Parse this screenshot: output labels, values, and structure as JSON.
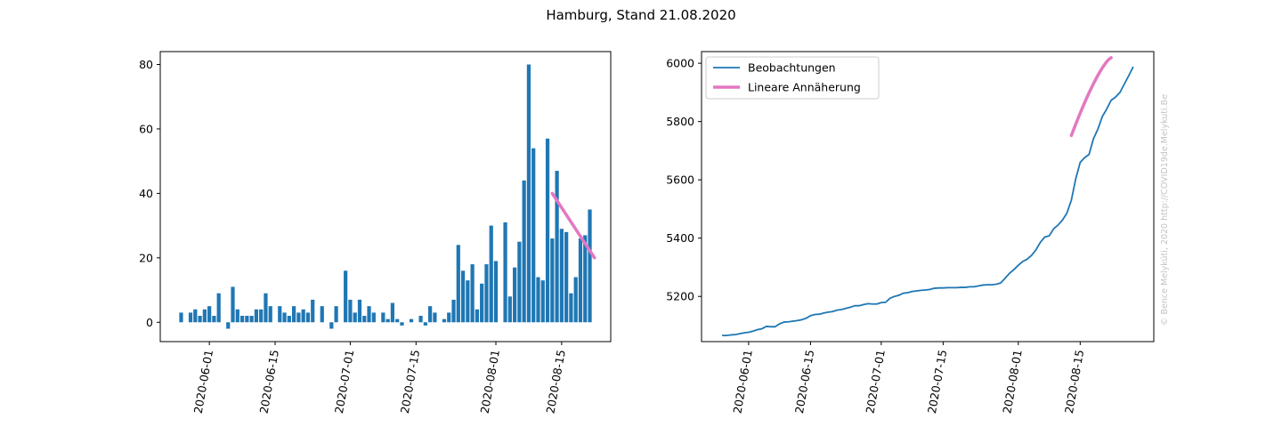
{
  "title": "Hamburg, Stand 21.08.2020",
  "watermark": "© Bence Melykúti, 2020  http://COVID19de.Melykuti.Be",
  "colors": {
    "bars": "#1f77b4",
    "observations": "#1f77b4",
    "fit": "#e377c2"
  },
  "chart_data": [
    {
      "type": "bar",
      "start_date": "2020-05-26",
      "x_ticks": [
        "2020-06-01",
        "2020-06-15",
        "2020-07-01",
        "2020-07-15",
        "2020-08-01",
        "2020-08-15"
      ],
      "y_ticks": [
        "0",
        "20",
        "40",
        "60",
        "80"
      ],
      "ylim": [
        -6,
        84
      ],
      "values": [
        3,
        0,
        3,
        4,
        2,
        4,
        5,
        2,
        9,
        0,
        -2,
        11,
        4,
        2,
        2,
        2,
        4,
        4,
        9,
        5,
        0,
        5,
        3,
        2,
        5,
        3,
        4,
        3,
        7,
        0,
        5,
        0,
        -2,
        5,
        0,
        16,
        7,
        3,
        7,
        2,
        5,
        3,
        0,
        3,
        1,
        6,
        1,
        -1,
        0,
        1,
        0,
        2,
        -1,
        5,
        3,
        0,
        1,
        3,
        7,
        24,
        16,
        13,
        18,
        4,
        12,
        18,
        30,
        19,
        0,
        31,
        8,
        17,
        25,
        44,
        80,
        54,
        14,
        13,
        57,
        26,
        47,
        29,
        28,
        9,
        14,
        26,
        27,
        35
      ],
      "fit": {
        "label": "Lineare Annäherung",
        "start": "2020-08-13",
        "end": "2020-08-22",
        "y_start": 40,
        "y_end": 20
      },
      "grid": false
    },
    {
      "type": "line",
      "start_date": "2020-05-26",
      "x_ticks": [
        "2020-06-01",
        "2020-06-15",
        "2020-07-01",
        "2020-07-15",
        "2020-08-01",
        "2020-08-15"
      ],
      "y_ticks": [
        "5200",
        "5400",
        "5600",
        "5800",
        "6000"
      ],
      "ylim": [
        5045,
        6040
      ],
      "series": [
        {
          "name": "Beobachtungen",
          "values": [
            5066,
            5066,
            5068,
            5069,
            5072,
            5075,
            5077,
            5081,
            5086,
            5089,
            5097,
            5096,
            5096,
            5106,
            5112,
            5113,
            5115,
            5117,
            5120,
            5125,
            5134,
            5138,
            5139,
            5143,
            5146,
            5148,
            5153,
            5155,
            5159,
            5163,
            5168,
            5168,
            5172,
            5175,
            5174,
            5174,
            5179,
            5180,
            5194,
            5200,
            5204,
            5211,
            5213,
            5217,
            5219,
            5221,
            5222,
            5224,
            5228,
            5229,
            5229,
            5230,
            5230,
            5230,
            5231,
            5231,
            5233,
            5233,
            5236,
            5239,
            5240,
            5240,
            5242,
            5246,
            5262,
            5279,
            5292,
            5307,
            5320,
            5328,
            5341,
            5360,
            5386,
            5404,
            5408,
            5432,
            5445,
            5462,
            5486,
            5530,
            5604,
            5660,
            5676,
            5687,
            5741,
            5774,
            5817,
            5843,
            5873,
            5884,
            5900,
            5929,
            5958,
            5988
          ]
        }
      ],
      "fit": {
        "name": "Lineare Annäherung",
        "start": "2020-08-13",
        "end": "2020-08-22",
        "y_start": 5752,
        "y_end": 6019
      },
      "legend": "upper-left",
      "grid": false
    }
  ]
}
